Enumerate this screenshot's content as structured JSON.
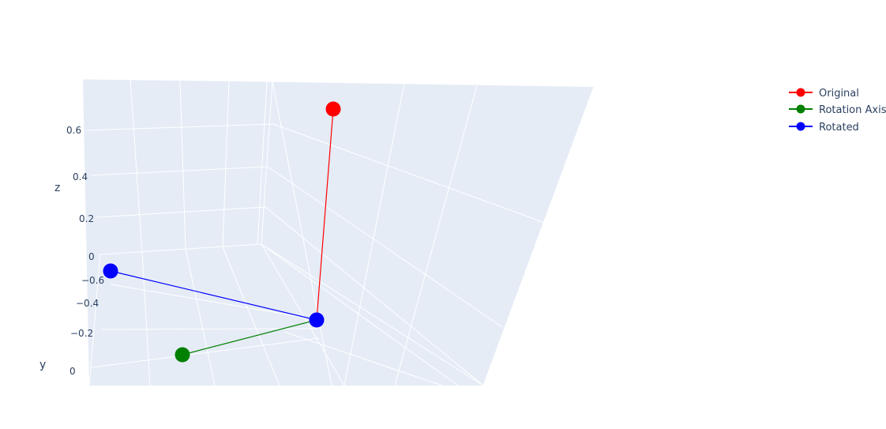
{
  "chart_data": {
    "type": "scatter3d",
    "title": "",
    "axes": {
      "z": {
        "label": "z",
        "ticks": [
          "0.6",
          "0.4",
          "0.2",
          "0"
        ]
      },
      "y": {
        "label": "y",
        "ticks": [
          "−0.6",
          "−0.4",
          "−0.2",
          "0"
        ]
      }
    },
    "series": [
      {
        "name": "Original",
        "color": "#ff0000",
        "points": [
          {
            "x": 0,
            "y": 0,
            "z": 0
          },
          {
            "x": 0,
            "y": 0,
            "z": 0.7
          }
        ]
      },
      {
        "name": "Rotation Axis",
        "color": "#008000",
        "points": [
          {
            "x": 0,
            "y": 0,
            "z": 0
          },
          {
            "x": 0.5,
            "y": 0,
            "z": 0
          }
        ]
      },
      {
        "name": "Rotated",
        "color": "#0000ff",
        "points": [
          {
            "x": 0,
            "y": 0,
            "z": 0
          },
          {
            "x": 0,
            "y": -0.7,
            "z": 0
          }
        ]
      }
    ],
    "legend_position": "top-right",
    "grid": true
  }
}
